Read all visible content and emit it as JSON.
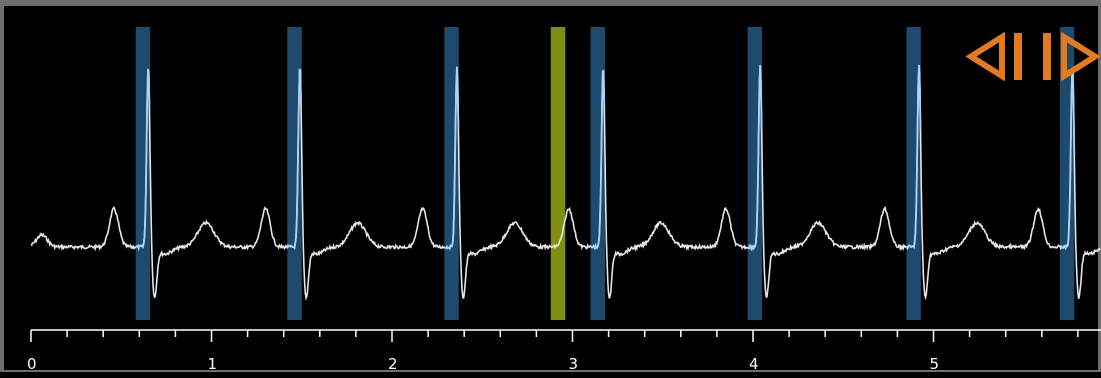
{
  "viewer": {
    "time_axis": {
      "unit": "s",
      "min": 0,
      "max": 5.95,
      "major_ticks": [
        0,
        1,
        2,
        3,
        4,
        5
      ],
      "major_labels": [
        "0",
        "1",
        "2",
        "3",
        "4",
        "5"
      ],
      "minor_step": 0.2
    },
    "beat_markers": [
      {
        "start": 0.58,
        "end": 0.66
      },
      {
        "start": 1.42,
        "end": 1.5
      },
      {
        "start": 2.29,
        "end": 2.37
      },
      {
        "start": 3.1,
        "end": 3.18
      },
      {
        "start": 3.97,
        "end": 4.05
      },
      {
        "start": 4.85,
        "end": 4.93
      },
      {
        "start": 5.7,
        "end": 5.78
      }
    ],
    "cursor_marker": {
      "start": 2.88,
      "end": 2.96
    },
    "r_peaks": [
      0.65,
      1.49,
      2.36,
      3.17,
      4.04,
      4.92,
      5.77
    ],
    "colors": {
      "background": "#000000",
      "frame": "#6f6f6f",
      "signal": "#e6e6e6",
      "signal_in_marker": "#a9d4f5",
      "beat_marker": "#1e4a6e",
      "cursor_marker": "#7f8f10",
      "nav_buttons": "#e47a1e",
      "axis": "#ffffff"
    },
    "nav": {
      "prev_icon": "step-back-icon",
      "next_icon": "step-forward-icon"
    }
  }
}
